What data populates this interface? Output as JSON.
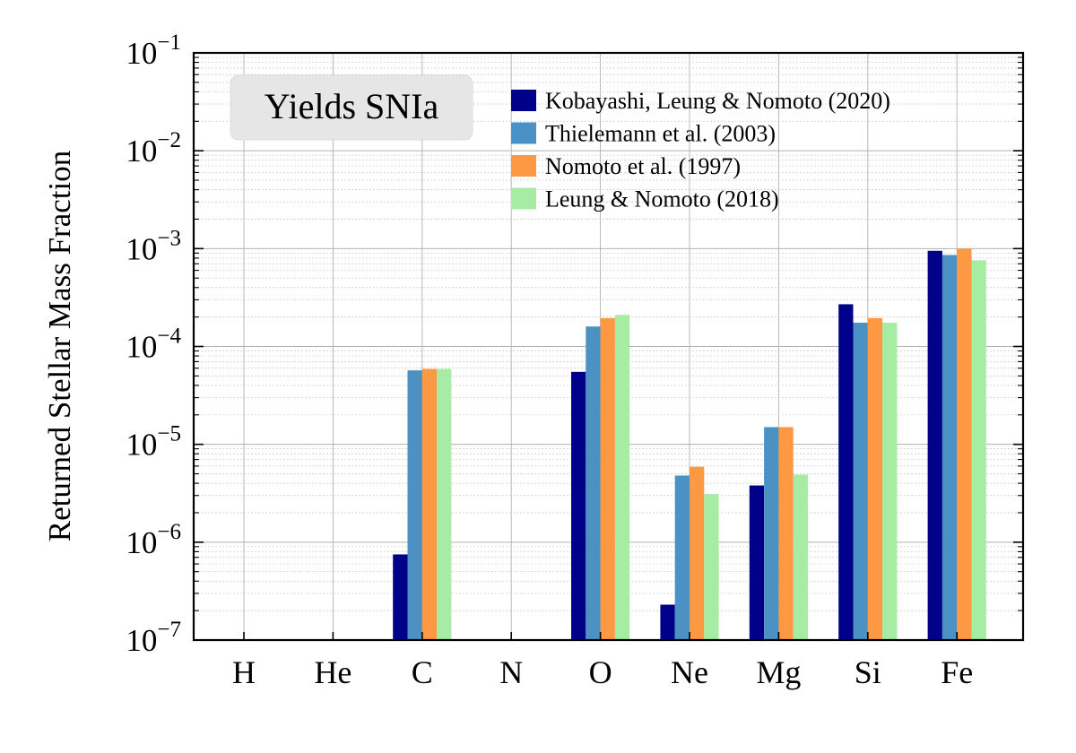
{
  "chart_data": {
    "type": "bar",
    "title": "Yields SNIa",
    "xlabel": "",
    "ylabel": "Returned Stellar Mass Fraction",
    "yscale": "log",
    "ylim": [
      1e-07,
      0.1
    ],
    "grid": true,
    "legend_position": "top-right",
    "categories": [
      "H",
      "He",
      "C",
      "N",
      "O",
      "Ne",
      "Mg",
      "Si",
      "Fe"
    ],
    "yticks": [
      {
        "base": "10",
        "exp": "−7"
      },
      {
        "base": "10",
        "exp": "−6"
      },
      {
        "base": "10",
        "exp": "−5"
      },
      {
        "base": "10",
        "exp": "−4"
      },
      {
        "base": "10",
        "exp": "−3"
      },
      {
        "base": "10",
        "exp": "−2"
      },
      {
        "base": "10",
        "exp": "−1"
      }
    ],
    "series": [
      {
        "name": "Kobayashi, Leung & Nomoto (2020)",
        "color": "#00008b",
        "values": [
          null,
          null,
          7.5e-07,
          null,
          5.5e-05,
          2.3e-07,
          3.8e-06,
          0.00027,
          0.00095
        ]
      },
      {
        "name": "Thielemann et al. (2003)",
        "color": "#4b91c3",
        "values": [
          null,
          null,
          5.7e-05,
          null,
          0.00016,
          4.8e-06,
          1.5e-05,
          0.000175,
          0.00086
        ]
      },
      {
        "name": "Nomoto et al. (1997)",
        "color": "#fd9942",
        "values": [
          null,
          null,
          5.9e-05,
          null,
          0.000195,
          5.9e-06,
          1.5e-05,
          0.000195,
          0.001
        ]
      },
      {
        "name": "Leung & Nomoto (2018)",
        "color": "#a6eda3",
        "values": [
          null,
          null,
          5.9e-05,
          null,
          0.00021,
          3.1e-06,
          4.9e-06,
          0.000175,
          0.00076
        ]
      }
    ]
  }
}
